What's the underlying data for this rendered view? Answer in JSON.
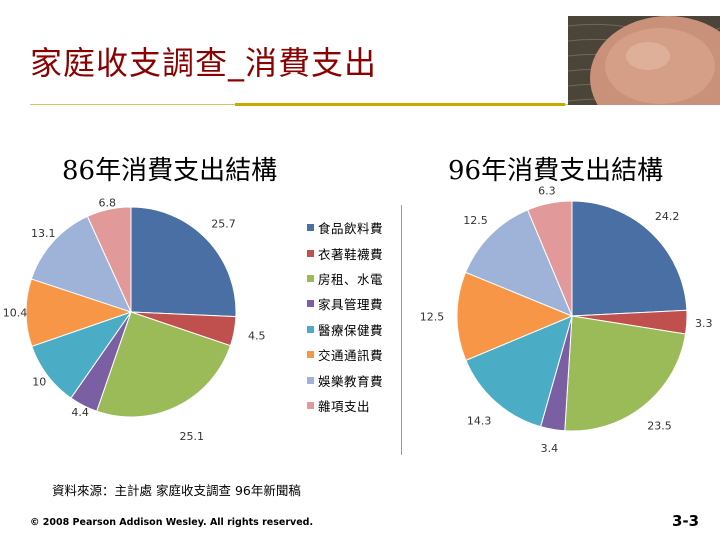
{
  "slide": {
    "title": "家庭收支調查_消費支出",
    "source": "資料來源：主計處 家庭收支調查 96年新聞稿",
    "copyright": "© 2008 Pearson Addison Wesley. All rights reserved.",
    "page_number": "3-3"
  },
  "chart_data": [
    {
      "type": "pie",
      "title": "86年消費支出結構",
      "categories": [
        "食品飲料費",
        "衣著鞋襪費",
        "房租、水電",
        "家具管理費",
        "醫療保健費",
        "交通通訊費",
        "娛樂教育費",
        "雜項支出"
      ],
      "values": [
        25.7,
        4.5,
        25.1,
        4.4,
        10,
        10.4,
        13.1,
        6.8
      ],
      "labels": [
        "25.7",
        "4.5",
        "25.1",
        "4.4",
        "10",
        "10.4",
        "13.1",
        "6.8"
      ],
      "colors": [
        "#4a6fa5",
        "#c0504d",
        "#9bbb59",
        "#7b5fa3",
        "#4bacc6",
        "#f79646",
        "#9fb3d8",
        "#e19999"
      ],
      "legend": "right"
    },
    {
      "type": "pie",
      "title": "96年消費支出結構",
      "categories": [
        "食品飲料費",
        "衣著鞋襪費",
        "房租、水電",
        "家具管理費",
        "醫療保健費",
        "交通通訊費",
        "娛樂教育費",
        "雜項支出"
      ],
      "values": [
        24.2,
        3.3,
        23.5,
        3.4,
        14.3,
        12.5,
        12.5,
        6.3
      ],
      "labels": [
        "24.2",
        "3.3",
        "23.5",
        "3.4",
        "14.3",
        "12.5",
        "12.5",
        "6.3"
      ],
      "colors": [
        "#4a6fa5",
        "#c0504d",
        "#9bbb59",
        "#7b5fa3",
        "#4bacc6",
        "#f79646",
        "#9fb3d8",
        "#e19999"
      ],
      "legend": "none"
    }
  ]
}
